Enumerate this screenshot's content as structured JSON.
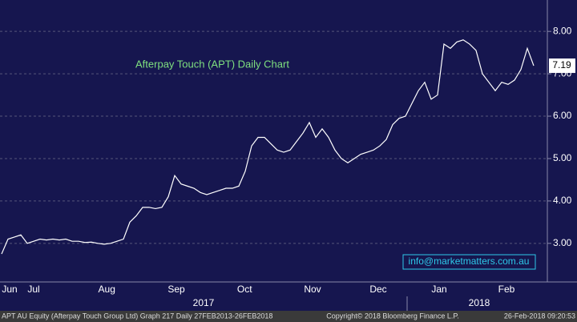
{
  "chart_data": {
    "type": "line",
    "title": "Afterpay Touch (APT) Daily Chart",
    "annotation": "info@marketmatters.com.au",
    "footer_left": "APT AU Equity (Afterpay Touch Group Ltd) Graph 217  Daily 27FEB2013-26FEB2018",
    "footer_center": "Copyright© 2018 Bloomberg Finance L.P.",
    "footer_right": "26-Feb-2018 09:20:53",
    "years": [
      {
        "value": 31.5,
        "label": "2017"
      },
      {
        "value": 74.5,
        "label": "2018"
      }
    ],
    "color": "#ffffff",
    "values": [
      2.75,
      3.1,
      3.15,
      3.2,
      3.0,
      3.05,
      3.1,
      3.08,
      3.1,
      3.08,
      3.1,
      3.05,
      3.05,
      3.02,
      3.03,
      3.0,
      2.98,
      3.0,
      3.05,
      3.1,
      3.5,
      3.65,
      3.85,
      3.85,
      3.82,
      3.85,
      4.1,
      4.6,
      4.4,
      4.35,
      4.3,
      4.2,
      4.15,
      4.2,
      4.25,
      4.3,
      4.3,
      4.35,
      4.7,
      5.3,
      5.5,
      5.5,
      5.35,
      5.2,
      5.15,
      5.2,
      5.4,
      5.6,
      5.85,
      5.5,
      5.7,
      5.5,
      5.2,
      5.0,
      4.9,
      5.0,
      5.1,
      5.15,
      5.2,
      5.3,
      5.45,
      5.8,
      5.95,
      6.0,
      6.3,
      6.6,
      6.8,
      6.4,
      6.5,
      7.7,
      7.6,
      7.75,
      7.8,
      7.7,
      7.55,
      7.0,
      6.8,
      6.6,
      6.8,
      6.75,
      6.85,
      7.1,
      7.6,
      7.19
    ],
    "xlim": [
      0,
      83
    ],
    "xticks": [
      {
        "value": 1.25,
        "label": "Jun"
      },
      {
        "value": 5,
        "label": "Jul"
      },
      {
        "value": 16.4,
        "label": "Aug"
      },
      {
        "value": 27.25,
        "label": "Sep"
      },
      {
        "value": 37.9,
        "label": "Oct"
      },
      {
        "value": 48.5,
        "label": "Nov"
      },
      {
        "value": 58.75,
        "label": "Dec"
      },
      {
        "value": 68.25,
        "label": "Jan"
      },
      {
        "value": 78.75,
        "label": "Feb"
      }
    ],
    "ylim": [
      2.09,
      8.74
    ],
    "yticks": [
      {
        "value": 3,
        "label": "3.00"
      },
      {
        "value": 4,
        "label": "4.00"
      },
      {
        "value": 5,
        "label": "5.00"
      },
      {
        "value": 6,
        "label": "6.00"
      },
      {
        "value": 7,
        "label": "7.00"
      },
      {
        "value": 8,
        "label": "8.00"
      }
    ],
    "grid": true
  }
}
